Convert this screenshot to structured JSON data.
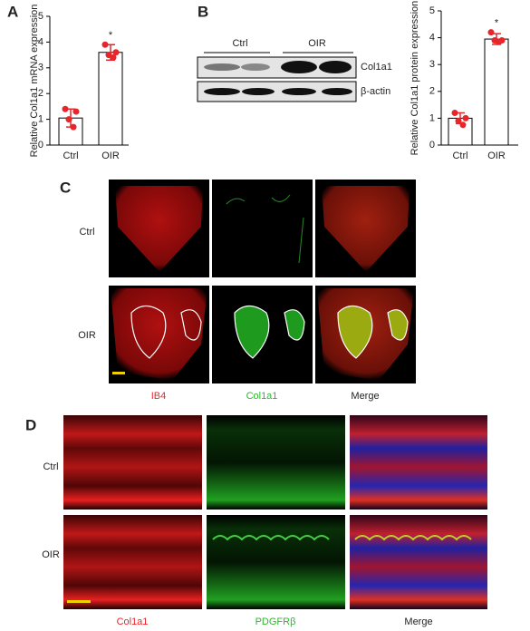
{
  "panel_labels": [
    "A",
    "B",
    "C",
    "D"
  ],
  "chart_data": [
    {
      "type": "bar",
      "ylabel": "Relative Col1a1 mRNA expression",
      "categories": [
        "Ctrl",
        "OIR"
      ],
      "values": [
        1.05,
        3.6
      ],
      "errors": [
        0.35,
        0.3
      ],
      "points": [
        [
          1.4,
          1.3,
          1.0,
          0.7
        ],
        [
          3.9,
          3.6,
          3.5,
          3.4
        ]
      ],
      "color": "#ffffff",
      "point_color": "#e8252a",
      "annotation": "*",
      "ylim": [
        0,
        5
      ],
      "yticks": [
        0,
        1,
        2,
        3,
        4,
        5
      ]
    },
    {
      "type": "bar",
      "ylabel": "Relative Col1a1 protein expression",
      "categories": [
        "Ctrl",
        "OIR"
      ],
      "values": [
        1.0,
        3.95
      ],
      "errors": [
        0.2,
        0.2
      ],
      "points": [
        [
          1.2,
          1.0,
          0.9,
          0.75
        ],
        [
          4.2,
          3.9,
          3.9,
          3.85
        ]
      ],
      "color": "#ffffff",
      "point_color": "#e8252a",
      "annotation": "*",
      "ylim": [
        0,
        5
      ],
      "yticks": [
        0,
        1,
        2,
        3,
        4,
        5
      ]
    }
  ],
  "blot": {
    "groups": [
      "Ctrl",
      "OIR"
    ],
    "rows": [
      "Col1a1",
      "β-actin"
    ]
  },
  "panel_c": {
    "rows": [
      "Ctrl",
      "OIR"
    ],
    "columns": [
      "IB4",
      "Col1a1",
      "Merge"
    ],
    "column_colors": [
      "#e8252a",
      "#2db82d",
      "#222222"
    ]
  },
  "panel_d": {
    "rows": [
      "Ctrl",
      "OIR"
    ],
    "columns": [
      "Col1a1",
      "PDGFRβ",
      "Merge"
    ],
    "column_colors": [
      "#e8252a",
      "#2db82d",
      "#222222"
    ]
  }
}
